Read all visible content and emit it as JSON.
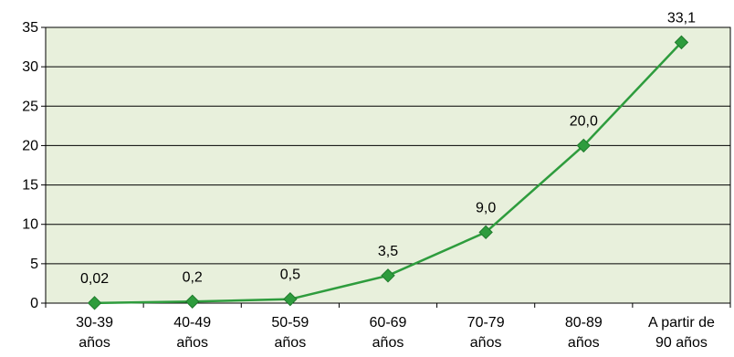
{
  "chart_data": {
    "type": "line",
    "categories": [
      [
        "30-39",
        "años"
      ],
      [
        "40-49",
        "años"
      ],
      [
        "50-59",
        "años"
      ],
      [
        "60-69",
        "años"
      ],
      [
        "70-79",
        "años"
      ],
      [
        "80-89",
        "años"
      ],
      [
        "A partir de",
        "90 años"
      ]
    ],
    "series": [
      {
        "values": [
          0.02,
          0.2,
          0.5,
          3.5,
          9.0,
          20.0,
          33.1
        ],
        "labels": [
          "0,02",
          "0,2",
          "0,5",
          "3,5",
          "9,0",
          "20,0",
          "33,1"
        ]
      }
    ],
    "yticks": [
      "0",
      "5",
      "10",
      "15",
      "20",
      "25",
      "30",
      "35"
    ],
    "ylim": [
      0,
      35
    ],
    "grid": true,
    "legend": "none",
    "colors": {
      "plot_background": "#e8f0dc",
      "line": "#2e9c3d",
      "marker": "#2e9c3d",
      "grid": "#000000"
    },
    "marker": "diamond"
  }
}
